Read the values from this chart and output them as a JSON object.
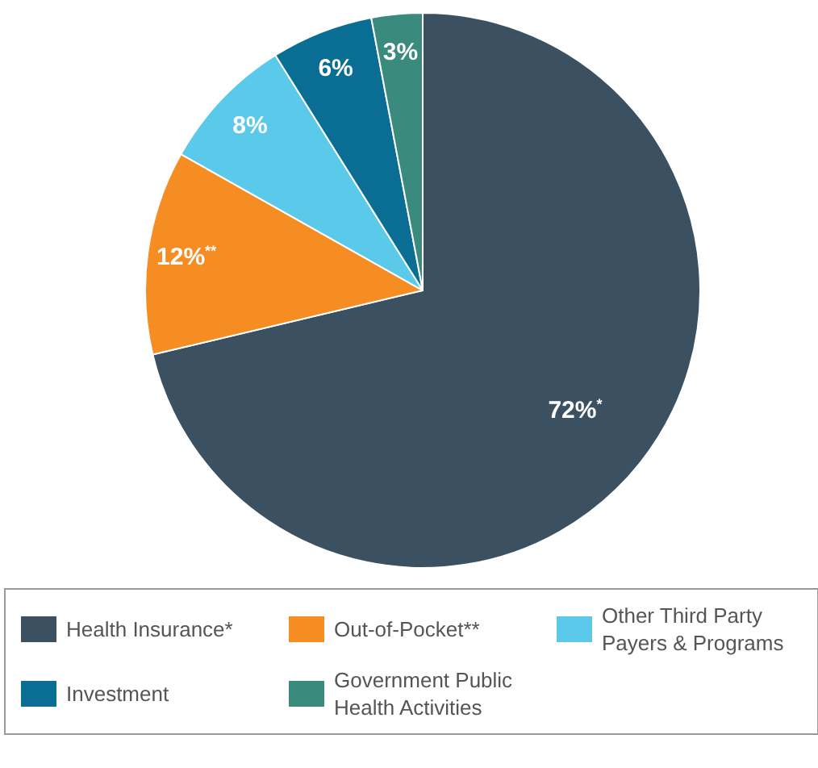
{
  "chart_data": {
    "type": "pie",
    "categories": [
      "Health Insurance*",
      "Out-of-Pocket**",
      "Other Third Party Payers & Programs",
      "Investment",
      "Government Public Health Activities"
    ],
    "values": [
      72,
      12,
      8,
      6,
      3
    ],
    "colors": [
      "#3b5162",
      "#f68d23",
      "#5bc9e9",
      "#0a6e94",
      "#3a8a7d"
    ],
    "value_labels": [
      "72%$^{*}$",
      "12%$^{**}$",
      "8%",
      "6%",
      "3%"
    ],
    "legend": "bottom"
  }
}
